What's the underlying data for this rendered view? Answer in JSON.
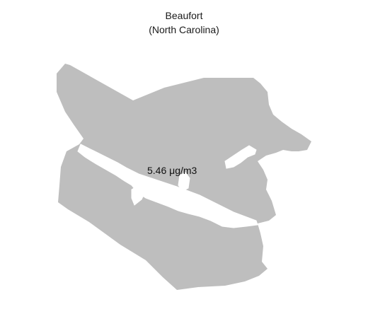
{
  "map": {
    "title": "Beaufort",
    "subtitle": "(North Carolina)",
    "value_label": "5.46 μg/m3",
    "fill_color": "#bebebe",
    "water_color": "#ffffff"
  }
}
